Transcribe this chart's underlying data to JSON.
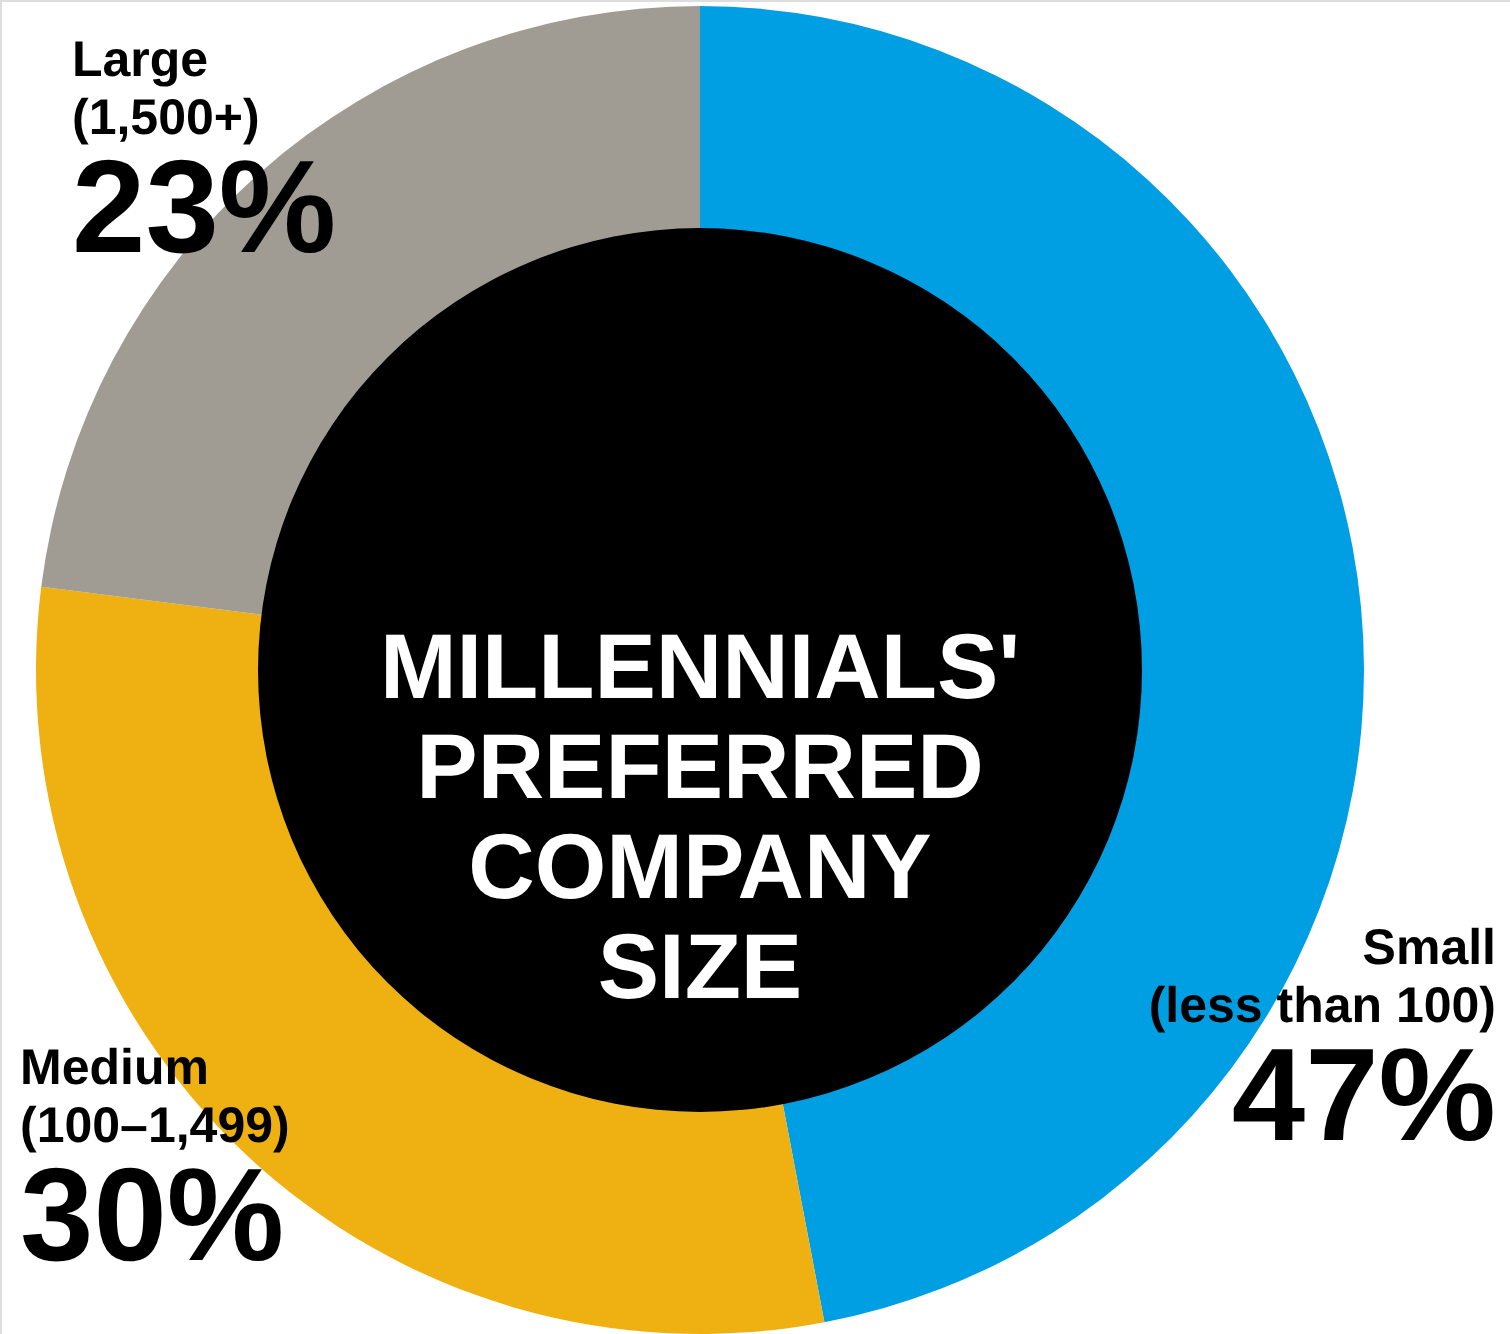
{
  "chart_data": {
    "type": "donut",
    "title": "MILLENNIALS'\nPREFERRED\nCOMPANY\nSIZE",
    "categories": [
      "Small\n(less than 100)",
      "Medium\n(100–1,499)",
      "Large\n(1,500+)"
    ],
    "values": [
      47,
      30,
      23
    ],
    "value_labels": [
      "47%",
      "30%",
      "23%"
    ],
    "colors": [
      "#009fe3",
      "#eeb111",
      "#a09c94"
    ]
  }
}
